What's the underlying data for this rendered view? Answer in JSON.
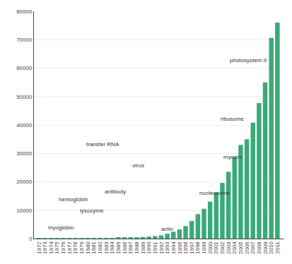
{
  "chart_data": {
    "type": "bar",
    "x": [
      1972,
      1973,
      1974,
      1975,
      1976,
      1977,
      1978,
      1979,
      1980,
      1981,
      1982,
      1983,
      1984,
      1985,
      1986,
      1987,
      1988,
      1989,
      1990,
      1991,
      1992,
      1993,
      1994,
      1995,
      1996,
      1997,
      1998,
      1999,
      2000,
      2001,
      2002,
      2003,
      2004,
      2005,
      2006,
      2007,
      2008,
      2009,
      2010,
      2011
    ],
    "values": [
      7,
      9,
      17,
      20,
      23,
      37,
      51,
      59,
      66,
      95,
      117,
      152,
      201,
      264,
      320,
      388,
      491,
      568,
      711,
      897,
      1132,
      1711,
      2422,
      3218,
      4400,
      6200,
      8600,
      10500,
      13000,
      16200,
      19600,
      23500,
      28700,
      33000,
      35000,
      40800,
      47700,
      55000,
      70600,
      76000
    ],
    "color": "#3aaa7a",
    "xlim": [
      1971.2,
      2012
    ],
    "xticks": [
      1972,
      1973,
      1974,
      1975,
      1976,
      1977,
      1978,
      1979,
      1980,
      1981,
      1982,
      1983,
      1984,
      1985,
      1986,
      1987,
      1988,
      1989,
      1990,
      1991,
      1992,
      1993,
      1994,
      1995,
      1996,
      1997,
      1998,
      1999,
      2000,
      2001,
      2002,
      2003,
      2004,
      2005,
      2006,
      2007,
      2008,
      2009,
      2010,
      2011
    ],
    "ylim": [
      0,
      80000
    ],
    "yticks": [
      0,
      10000,
      20000,
      30000,
      40000,
      50000,
      60000,
      70000,
      80000
    ],
    "grid": true,
    "annotations": [
      {
        "text": "myoglobin",
        "x": 1973.3,
        "y": 2200
      },
      {
        "text": "hemoglobin",
        "x": 1975.0,
        "y": 12200
      },
      {
        "text": "lysozyme",
        "x": 1978.5,
        "y": 8200
      },
      {
        "text": "transfer RNA",
        "x": 1979.5,
        "y": 31500
      },
      {
        "text": "antibody",
        "x": 1982.5,
        "y": 15000
      },
      {
        "text": "virus",
        "x": 1987.0,
        "y": 24000
      },
      {
        "text": "actin",
        "x": 1991.8,
        "y": 1800
      },
      {
        "text": "nucleosome",
        "x": 1998.0,
        "y": 14500
      },
      {
        "text": "ribosome",
        "x": 2001.5,
        "y": 40500
      },
      {
        "text": "myosin",
        "x": 2002.0,
        "y": 27000
      },
      {
        "text": "photosystem II",
        "x": 2003.0,
        "y": 61000
      }
    ]
  }
}
